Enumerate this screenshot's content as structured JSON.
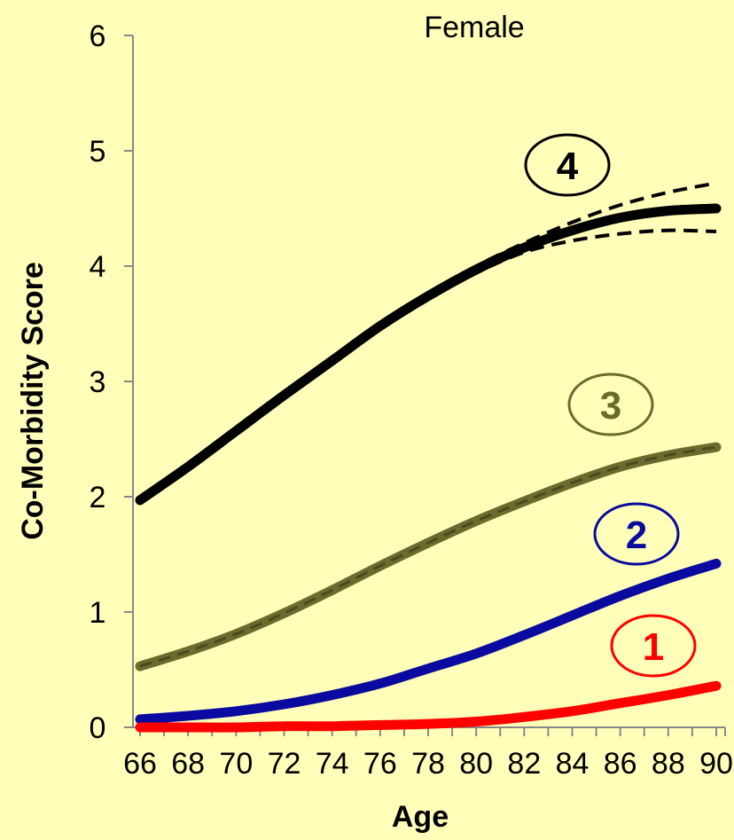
{
  "chart_data": {
    "type": "line",
    "title": "Female",
    "xlabel": "Age",
    "ylabel": "Co-Morbidity Score",
    "xlim": [
      66,
      90
    ],
    "ylim": [
      0,
      6
    ],
    "x_ticks": [
      "66",
      "68",
      "70",
      "72",
      "74",
      "76",
      "78",
      "80",
      "82",
      "84",
      "86",
      "88",
      "90"
    ],
    "y_ticks": [
      "0",
      "1",
      "2",
      "3",
      "4",
      "5",
      "6"
    ],
    "grid": false,
    "legend": "none",
    "x": [
      66,
      68,
      70,
      72,
      74,
      76,
      78,
      80,
      82,
      84,
      86,
      88,
      90
    ],
    "series": [
      {
        "label": "4",
        "color": "#000000",
        "values": [
          1.97,
          2.26,
          2.57,
          2.88,
          3.18,
          3.48,
          3.74,
          3.97,
          4.16,
          4.31,
          4.42,
          4.48,
          4.5
        ],
        "ci_upper": [
          1.98,
          2.27,
          2.58,
          2.89,
          3.2,
          3.5,
          3.76,
          4.0,
          4.2,
          4.38,
          4.53,
          4.64,
          4.72
        ],
        "ci_lower": [
          1.96,
          2.25,
          2.56,
          2.87,
          3.16,
          3.46,
          3.72,
          3.94,
          4.12,
          4.22,
          4.28,
          4.31,
          4.3
        ]
      },
      {
        "label": "3",
        "color": "#6B6B2E",
        "values": [
          0.53,
          0.66,
          0.81,
          0.99,
          1.19,
          1.4,
          1.6,
          1.79,
          1.96,
          2.12,
          2.26,
          2.36,
          2.43
        ]
      },
      {
        "label": "2",
        "color": "#0A0AA0",
        "values": [
          0.07,
          0.1,
          0.14,
          0.2,
          0.28,
          0.38,
          0.51,
          0.64,
          0.8,
          0.97,
          1.14,
          1.29,
          1.42
        ]
      },
      {
        "label": "1",
        "color": "#FF0000",
        "values": [
          0.0,
          0.0,
          0.0,
          0.01,
          0.01,
          0.02,
          0.03,
          0.05,
          0.09,
          0.14,
          0.21,
          0.28,
          0.36
        ]
      }
    ]
  }
}
